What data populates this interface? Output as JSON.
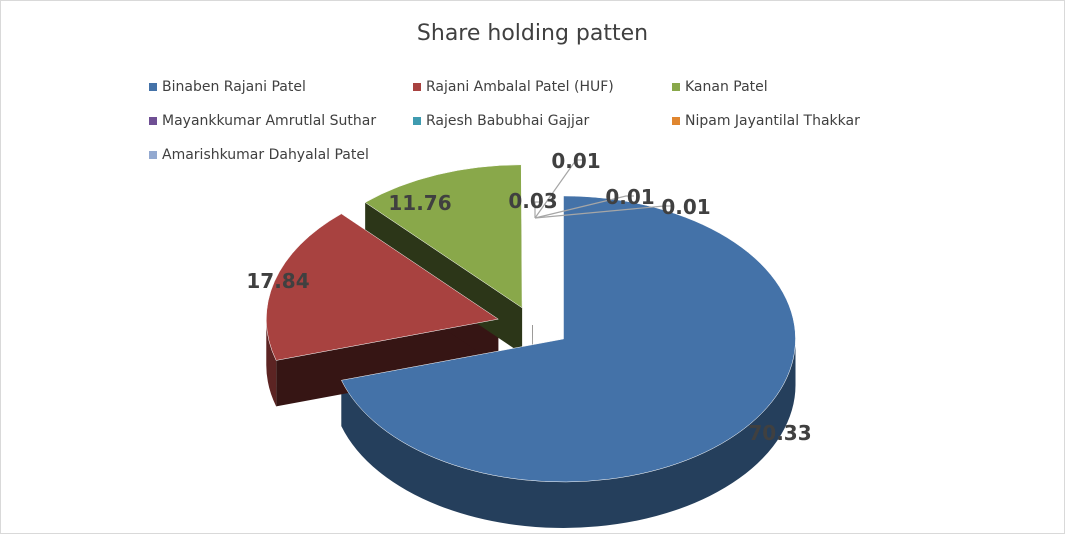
{
  "chart_data": {
    "type": "pie",
    "variant": "3d-exploded",
    "title": "Share holding patten",
    "categories": [
      "Binaben Rajani Patel",
      "Rajani Ambalal Patel (HUF)",
      "Kanan Patel",
      "Mayankkumar Amrutlal Suthar",
      "Rajesh Babubhai Gajjar",
      "Nipam Jayantilal Thakkar",
      "Amarishkumar Dahyalal Patel"
    ],
    "values": [
      70.33,
      17.84,
      11.76,
      0.01,
      0.01,
      0.01,
      0.03
    ],
    "value_labels": [
      "70.33",
      "17.84",
      "11.76",
      "0.01",
      "0.01",
      "0.01",
      "0.03"
    ],
    "colors": [
      "#4472a8",
      "#a84240",
      "#89a84a",
      "#6f4f94",
      "#3f9bb0",
      "#e0862f",
      "#93a9d0"
    ],
    "legend_position": "top"
  }
}
